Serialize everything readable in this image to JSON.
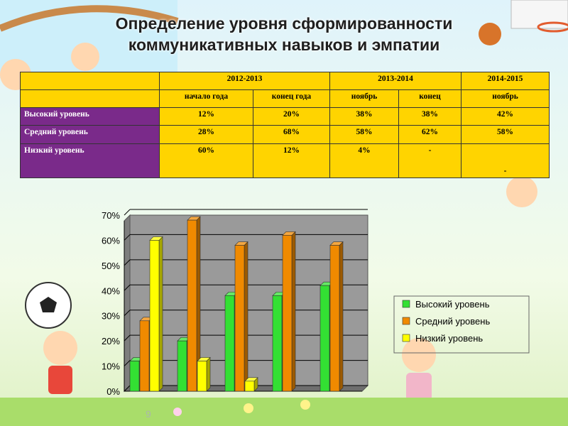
{
  "title": {
    "line1": "Определение уровня сформированности",
    "line2": "коммуникативных навыков  и эмпатии"
  },
  "table": {
    "years": [
      "2012-2013",
      "2013-2014",
      "2014-2015"
    ],
    "periods": [
      "начало года",
      "конец года",
      "ноябрь",
      "конец",
      "ноябрь"
    ],
    "rows": [
      {
        "label": "Высокий уровень",
        "values": [
          "12%",
          "20%",
          "38%",
          "38%",
          "42%"
        ]
      },
      {
        "label": "Средний уровень",
        "values": [
          "28%",
          "68%",
          "58%",
          "62%",
          "58%"
        ]
      },
      {
        "label": "Низкий уровень",
        "values": [
          "60%",
          "12%",
          "4%",
          "-",
          "-"
        ]
      }
    ]
  },
  "chart_data": {
    "type": "bar",
    "categories": [
      "",
      "",
      "",
      "",
      ""
    ],
    "series": [
      {
        "name": "Высокий уровень",
        "values": [
          12,
          20,
          38,
          38,
          42
        ],
        "color": "#33e033"
      },
      {
        "name": "Средний уровень",
        "values": [
          28,
          68,
          58,
          62,
          58
        ],
        "color": "#f08a00"
      },
      {
        "name": "Низкий уровень",
        "values": [
          60,
          12,
          4,
          0,
          0
        ],
        "color": "#ffff00"
      }
    ],
    "ylim": [
      0,
      70
    ],
    "yticks": [
      "0%",
      "10%",
      "20%",
      "30%",
      "40%",
      "50%",
      "60%",
      "70%"
    ],
    "grid": true,
    "legend_position": "right",
    "plot_background": "#9a9a9a"
  },
  "page_number": "9"
}
